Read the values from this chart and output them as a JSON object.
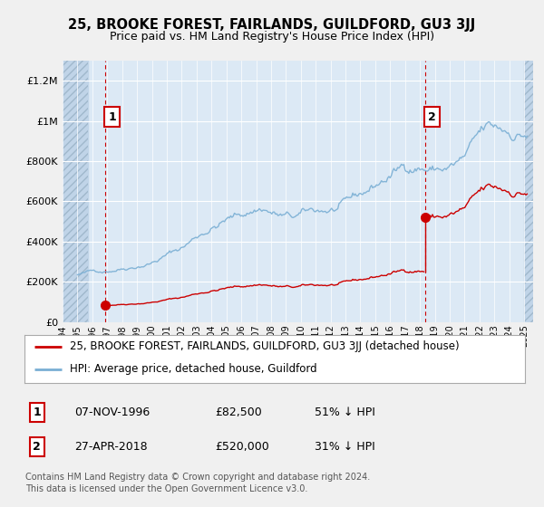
{
  "title": "25, BROOKE FOREST, FAIRLANDS, GUILDFORD, GU3 3JJ",
  "subtitle": "Price paid vs. HM Land Registry's House Price Index (HPI)",
  "background_color": "#f0f0f0",
  "plot_bg_color": "#dce9f5",
  "hatch_bg_color": "#c8d8e8",
  "sale1_date": 1996.85,
  "sale1_price": 82500,
  "sale2_date": 2018.33,
  "sale2_price": 520000,
  "hpi_color": "#7aafd4",
  "price_color": "#cc0000",
  "vline_color": "#cc0000",
  "ylim_min": 0,
  "ylim_max": 1300000,
  "yticks": [
    0,
    200000,
    400000,
    600000,
    800000,
    1000000,
    1200000
  ],
  "ytick_labels": [
    "£0",
    "£200K",
    "£400K",
    "£600K",
    "£800K",
    "£1M",
    "£1.2M"
  ],
  "legend_entry1": "25, BROOKE FOREST, FAIRLANDS, GUILDFORD, GU3 3JJ (detached house)",
  "legend_entry2": "HPI: Average price, detached house, Guildford",
  "footer1": "Contains HM Land Registry data © Crown copyright and database right 2024.",
  "footer2": "This data is licensed under the Open Government Licence v3.0.",
  "table_row1": [
    "1",
    "07-NOV-1996",
    "£82,500",
    "51% ↓ HPI"
  ],
  "table_row2": [
    "2",
    "27-APR-2018",
    "£520,000",
    "31% ↓ HPI"
  ]
}
